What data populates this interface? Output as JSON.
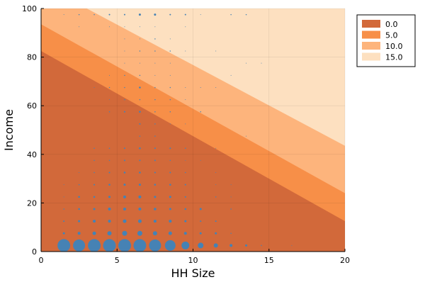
{
  "chart_data": {
    "type": "area",
    "xlabel": "HH Size",
    "ylabel": "Income",
    "xlim": [
      0,
      20
    ],
    "ylim": [
      0,
      100
    ],
    "x_ticks": [
      0,
      5,
      10,
      15,
      20
    ],
    "x_tick_labels": [
      "0",
      "5",
      "10",
      "15",
      "20"
    ],
    "y_ticks": [
      0,
      20,
      40,
      60,
      80,
      100
    ],
    "y_tick_labels": [
      "0",
      "20",
      "40",
      "60",
      "80",
      "100"
    ],
    "grid": true,
    "legend_position": "top-right",
    "series": [
      {
        "name": "0.0",
        "color": "#d2693a",
        "boundary": [
          [
            0,
            82.5
          ],
          [
            20,
            12.5
          ]
        ]
      },
      {
        "name": "5.0",
        "color": "#f78f48",
        "boundary": [
          [
            0,
            93.5
          ],
          [
            20,
            24.0
          ]
        ]
      },
      {
        "name": "10.0",
        "color": "#fdb47c",
        "boundary": [
          [
            0,
            110.0
          ],
          [
            20,
            43.5
          ]
        ]
      },
      {
        "name": "15.0",
        "color": "#fde0c0",
        "boundary": [
          [
            0,
            100
          ],
          [
            20,
            100
          ]
        ]
      }
    ],
    "scatter": {
      "color": "#4682b4",
      "points": [
        [
          1.5,
          2.5,
          18
        ],
        [
          2.5,
          2.5,
          17
        ],
        [
          3.5,
          2.5,
          18
        ],
        [
          4.5,
          2.5,
          18
        ],
        [
          5.5,
          2.5,
          18
        ],
        [
          6.5,
          2.5,
          18
        ],
        [
          7.5,
          2.5,
          17
        ],
        [
          8.5,
          2.5,
          15
        ],
        [
          9.5,
          2.5,
          11
        ],
        [
          10.5,
          2.5,
          8
        ],
        [
          11.5,
          2.5,
          6
        ],
        [
          12.5,
          2.5,
          4
        ],
        [
          13.5,
          2.5,
          3
        ],
        [
          14.5,
          2.5,
          1.5
        ],
        [
          16.5,
          2.5,
          1
        ],
        [
          1.5,
          7.5,
          3
        ],
        [
          2.5,
          7.5,
          4
        ],
        [
          3.5,
          7.5,
          5
        ],
        [
          4.5,
          7.5,
          6
        ],
        [
          5.5,
          7.5,
          7
        ],
        [
          6.5,
          7.5,
          7
        ],
        [
          7.5,
          7.5,
          6
        ],
        [
          8.5,
          7.5,
          5
        ],
        [
          9.5,
          7.5,
          4
        ],
        [
          10.5,
          7.5,
          3
        ],
        [
          11.5,
          7.5,
          3
        ],
        [
          12.5,
          7.5,
          1.5
        ],
        [
          1.5,
          12.5,
          2
        ],
        [
          2.5,
          12.5,
          3
        ],
        [
          3.5,
          12.5,
          4
        ],
        [
          4.5,
          12.5,
          4
        ],
        [
          5.5,
          12.5,
          5
        ],
        [
          6.5,
          12.5,
          5
        ],
        [
          7.5,
          12.5,
          4
        ],
        [
          8.5,
          12.5,
          4
        ],
        [
          9.5,
          12.5,
          3
        ],
        [
          10.5,
          12.5,
          2
        ],
        [
          11.5,
          12.5,
          2
        ],
        [
          1.5,
          17.5,
          1.5
        ],
        [
          2.5,
          17.5,
          2.5
        ],
        [
          3.5,
          17.5,
          3
        ],
        [
          4.5,
          17.5,
          4
        ],
        [
          5.5,
          17.5,
          4
        ],
        [
          6.5,
          17.5,
          4
        ],
        [
          7.5,
          17.5,
          3.5
        ],
        [
          8.5,
          17.5,
          3
        ],
        [
          9.5,
          17.5,
          2.5
        ],
        [
          10.5,
          17.5,
          3
        ],
        [
          12.5,
          17.5,
          1.5
        ],
        [
          1.5,
          22.5,
          1
        ],
        [
          2.5,
          22.5,
          2.5
        ],
        [
          3.5,
          22.5,
          2.5
        ],
        [
          4.5,
          22.5,
          3
        ],
        [
          5.5,
          22.5,
          4
        ],
        [
          6.5,
          22.5,
          4
        ],
        [
          7.5,
          22.5,
          3
        ],
        [
          8.5,
          22.5,
          3
        ],
        [
          9.5,
          22.5,
          2
        ],
        [
          11.5,
          22.5,
          1.5
        ],
        [
          12.5,
          22.5,
          1
        ],
        [
          1.5,
          27.5,
          1
        ],
        [
          2.5,
          27.5,
          1.5
        ],
        [
          3.5,
          27.5,
          2
        ],
        [
          4.5,
          27.5,
          2.5
        ],
        [
          5.5,
          27.5,
          3
        ],
        [
          6.5,
          27.5,
          3
        ],
        [
          7.5,
          27.5,
          2.5
        ],
        [
          8.5,
          27.5,
          2.5
        ],
        [
          9.5,
          27.5,
          2
        ],
        [
          11.5,
          27.5,
          1
        ],
        [
          12.5,
          27.5,
          1
        ],
        [
          2.5,
          32.5,
          1
        ],
        [
          3.5,
          32.5,
          1.5
        ],
        [
          4.5,
          32.5,
          2
        ],
        [
          5.5,
          32.5,
          2.5
        ],
        [
          6.5,
          32.5,
          2.5
        ],
        [
          7.5,
          32.5,
          2
        ],
        [
          8.5,
          32.5,
          2
        ],
        [
          9.5,
          32.5,
          1.5
        ],
        [
          11.5,
          32.5,
          1
        ],
        [
          3.5,
          37.5,
          1.5
        ],
        [
          4.5,
          37.5,
          1.5
        ],
        [
          5.5,
          37.5,
          2
        ],
        [
          6.5,
          37.5,
          2
        ],
        [
          7.5,
          37.5,
          2
        ],
        [
          8.5,
          37.5,
          1.5
        ],
        [
          9.5,
          37.5,
          1
        ],
        [
          10.5,
          37.5,
          1
        ],
        [
          3.5,
          42.5,
          1.5
        ],
        [
          4.5,
          42.5,
          1.5
        ],
        [
          5.5,
          42.5,
          2
        ],
        [
          6.5,
          42.5,
          2.5
        ],
        [
          7.5,
          42.5,
          2
        ],
        [
          8.5,
          42.5,
          2
        ],
        [
          9.5,
          42.5,
          1.5
        ],
        [
          11.5,
          42.5,
          1
        ],
        [
          6.5,
          47.5,
          1.5
        ],
        [
          7.5,
          47.5,
          1.5
        ],
        [
          13.5,
          47.5,
          1
        ],
        [
          6.5,
          52.5,
          2
        ],
        [
          7.5,
          52.5,
          1.5
        ],
        [
          8.5,
          52.5,
          1
        ],
        [
          9.5,
          52.5,
          1
        ],
        [
          4.5,
          57.5,
          1.5
        ],
        [
          5.5,
          57.5,
          2
        ],
        [
          6.5,
          57.5,
          2.5
        ],
        [
          7.5,
          57.5,
          1.5
        ],
        [
          8.5,
          57.5,
          1.5
        ],
        [
          10.5,
          57.5,
          1.5
        ],
        [
          4.5,
          62.5,
          1
        ],
        [
          5.5,
          62.5,
          1.5
        ],
        [
          6.5,
          62.5,
          1.5
        ],
        [
          7.5,
          62.5,
          1.5
        ],
        [
          8.5,
          62.5,
          1.5
        ],
        [
          9.5,
          62.5,
          1
        ],
        [
          3.5,
          67.5,
          1
        ],
        [
          4.5,
          67.5,
          1.5
        ],
        [
          5.5,
          67.5,
          1.5
        ],
        [
          6.5,
          67.5,
          2.5
        ],
        [
          7.5,
          67.5,
          1.5
        ],
        [
          8.5,
          67.5,
          1.5
        ],
        [
          9.5,
          67.5,
          1
        ],
        [
          10.5,
          67.5,
          1
        ],
        [
          11.5,
          67.5,
          1
        ],
        [
          4.5,
          72.5,
          1
        ],
        [
          5.5,
          72.5,
          1.5
        ],
        [
          6.5,
          72.5,
          1.5
        ],
        [
          7.5,
          72.5,
          1
        ],
        [
          8.5,
          72.5,
          1
        ],
        [
          12.5,
          72.5,
          1
        ],
        [
          5.5,
          77.5,
          1
        ],
        [
          6.5,
          77.5,
          1
        ],
        [
          7.5,
          77.5,
          1
        ],
        [
          8.5,
          77.5,
          1
        ],
        [
          13.5,
          77.5,
          1
        ],
        [
          14.5,
          77.5,
          1
        ],
        [
          5.5,
          82.5,
          1
        ],
        [
          6.5,
          82.5,
          1.5
        ],
        [
          7.5,
          82.5,
          1.5
        ],
        [
          8.5,
          82.5,
          1.5
        ],
        [
          9.5,
          82.5,
          1
        ],
        [
          11.5,
          82.5,
          1
        ],
        [
          5.5,
          87.5,
          1
        ],
        [
          6.5,
          87.5,
          1
        ],
        [
          7.5,
          87.5,
          1.5
        ],
        [
          8.5,
          87.5,
          1
        ],
        [
          2.5,
          92.5,
          1
        ],
        [
          4.5,
          92.5,
          1
        ],
        [
          5.5,
          92.5,
          1
        ],
        [
          6.5,
          92.5,
          1
        ],
        [
          7.5,
          92.5,
          1
        ],
        [
          9.5,
          92.5,
          1
        ],
        [
          1.5,
          97.5,
          1
        ],
        [
          2.5,
          97.5,
          1.5
        ],
        [
          3.5,
          97.5,
          1.5
        ],
        [
          4.5,
          97.5,
          2
        ],
        [
          5.5,
          97.5,
          2
        ],
        [
          6.5,
          97.5,
          3
        ],
        [
          7.5,
          97.5,
          3
        ],
        [
          8.5,
          97.5,
          2
        ],
        [
          9.5,
          97.5,
          2
        ],
        [
          10.5,
          97.5,
          1
        ],
        [
          12.5,
          97.5,
          1.5
        ],
        [
          13.5,
          97.5,
          1.5
        ]
      ]
    }
  }
}
